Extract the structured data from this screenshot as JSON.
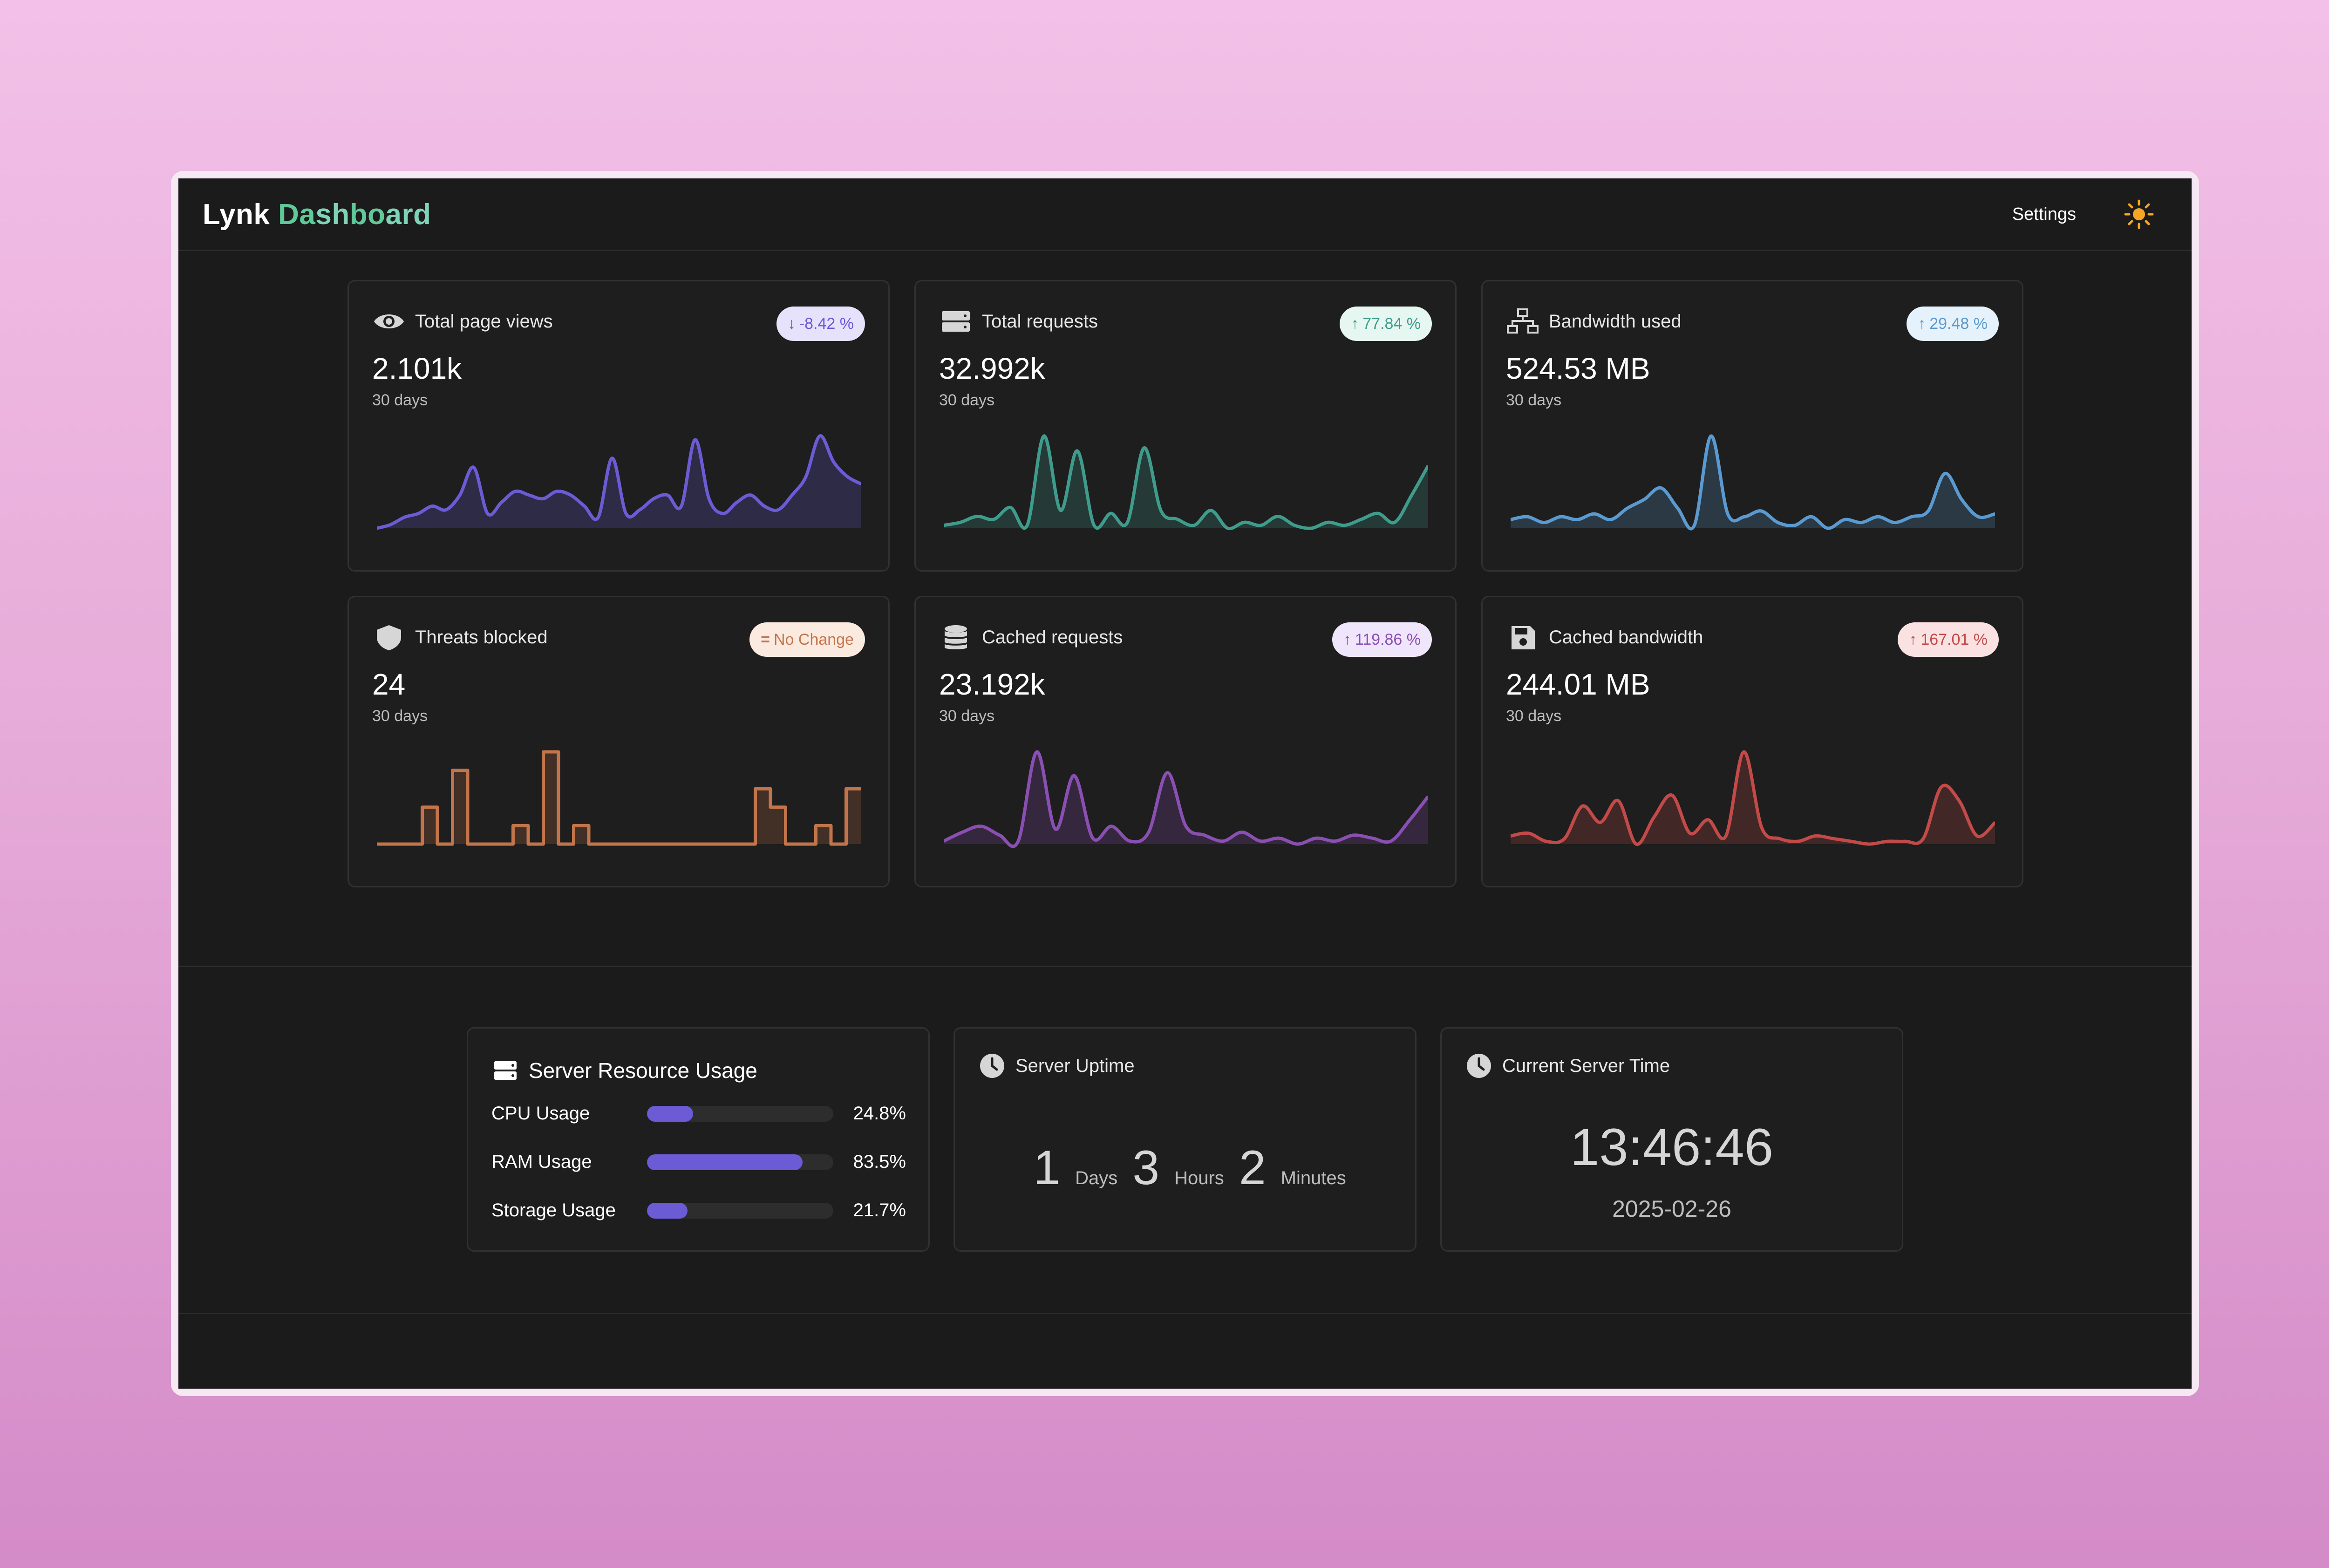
{
  "header": {
    "brand_a": "Lynk ",
    "brand_b": "Da",
    "brand_c": "sh",
    "brand_d": "bo",
    "brand_e": "ard",
    "settings_label": "Settings",
    "theme_icon": "sun-icon"
  },
  "cards": [
    {
      "icon": "eye-icon",
      "title": "Total page views",
      "value": "2.101k",
      "sub": "30 days",
      "badge": "-8.42 %",
      "direction": "down",
      "color": "#6b5bd4",
      "badge_bg": "#e6e2fb",
      "badge_fg": "#6b5bd4",
      "series": [
        12,
        14,
        18,
        20,
        24,
        22,
        30,
        45,
        20,
        26,
        32,
        30,
        28,
        32,
        30,
        24,
        18,
        50,
        20,
        22,
        28,
        30,
        24,
        60,
        28,
        20,
        26,
        30,
        24,
        22,
        30,
        40,
        62,
        48,
        40,
        36
      ]
    },
    {
      "icon": "server-icon",
      "title": "Total requests",
      "value": "32.992k",
      "sub": "30 days",
      "badge": "77.84 %",
      "direction": "up",
      "color": "#3f9c8c",
      "badge_bg": "#e6f6f1",
      "badge_fg": "#3f9c8c",
      "series": [
        10,
        12,
        16,
        14,
        22,
        10,
        70,
        20,
        60,
        10,
        18,
        12,
        62,
        20,
        14,
        10,
        20,
        8,
        12,
        10,
        16,
        10,
        8,
        12,
        10,
        14,
        18,
        12,
        30,
        50
      ]
    },
    {
      "icon": "network-icon",
      "title": "Bandwidth used",
      "value": "524.53 MB",
      "sub": "30 days",
      "badge": "29.48 %",
      "direction": "up",
      "color": "#5a9ad0",
      "badge_bg": "#e6f2fb",
      "badge_fg": "#5a9ad0",
      "series": [
        12,
        14,
        10,
        14,
        12,
        16,
        12,
        20,
        26,
        34,
        20,
        8,
        70,
        16,
        14,
        18,
        10,
        8,
        14,
        6,
        12,
        10,
        14,
        10,
        14,
        18,
        44,
        26,
        14,
        16
      ]
    },
    {
      "icon": "shield-icon",
      "title": "Threats blocked",
      "value": "24",
      "sub": "30 days",
      "badge": "No Change",
      "direction": "flat",
      "color": "#c2744a",
      "badge_bg": "#fbeae0",
      "badge_fg": "#c2744a",
      "series": [
        0,
        0,
        0,
        2,
        0,
        4,
        0,
        0,
        0,
        1,
        0,
        5,
        0,
        1,
        0,
        0,
        0,
        0,
        0,
        0,
        0,
        0,
        0,
        0,
        0,
        3,
        2,
        0,
        0,
        1,
        0,
        3
      ]
    },
    {
      "icon": "database-icon",
      "title": "Cached requests",
      "value": "23.192k",
      "sub": "30 days",
      "badge": "119.86 %",
      "direction": "up",
      "color": "#8a4fb2",
      "badge_bg": "#f0e6fb",
      "badge_fg": "#8a4fb2",
      "series": [
        10,
        16,
        20,
        14,
        10,
        70,
        18,
        54,
        12,
        20,
        10,
        16,
        56,
        20,
        14,
        10,
        16,
        10,
        12,
        8,
        12,
        10,
        14,
        12,
        10,
        24,
        40
      ]
    },
    {
      "icon": "floppy-icon",
      "title": "Cached bandwidth",
      "value": "244.01 MB",
      "sub": "30 days",
      "badge": "167.01 %",
      "direction": "up",
      "color": "#c24a48",
      "badge_bg": "#fbe2e2",
      "badge_fg": "#c24a48",
      "series": [
        14,
        16,
        10,
        12,
        36,
        24,
        40,
        8,
        28,
        44,
        16,
        26,
        14,
        76,
        20,
        12,
        10,
        14,
        12,
        10,
        8,
        10,
        10,
        12,
        50,
        40,
        14,
        24
      ]
    }
  ],
  "resources": {
    "title": "Server Resource Usage",
    "icon": "server-icon",
    "rows": [
      {
        "label": "CPU Usage",
        "value": "24.8%",
        "percent": 24.8
      },
      {
        "label": "RAM Usage",
        "value": "83.5%",
        "percent": 83.5
      },
      {
        "label": "Storage Usage",
        "value": "21.7%",
        "percent": 21.7
      }
    ]
  },
  "uptime": {
    "title": "Server Uptime",
    "icon": "clock-icon",
    "days": "1",
    "days_label": "Days",
    "hours": "3",
    "hours_label": "Hours",
    "minutes": "2",
    "minutes_label": "Minutes"
  },
  "time": {
    "title": "Current Server Time",
    "icon": "clock-icon",
    "clock": "13:46:46",
    "date": "2025-02-26"
  }
}
